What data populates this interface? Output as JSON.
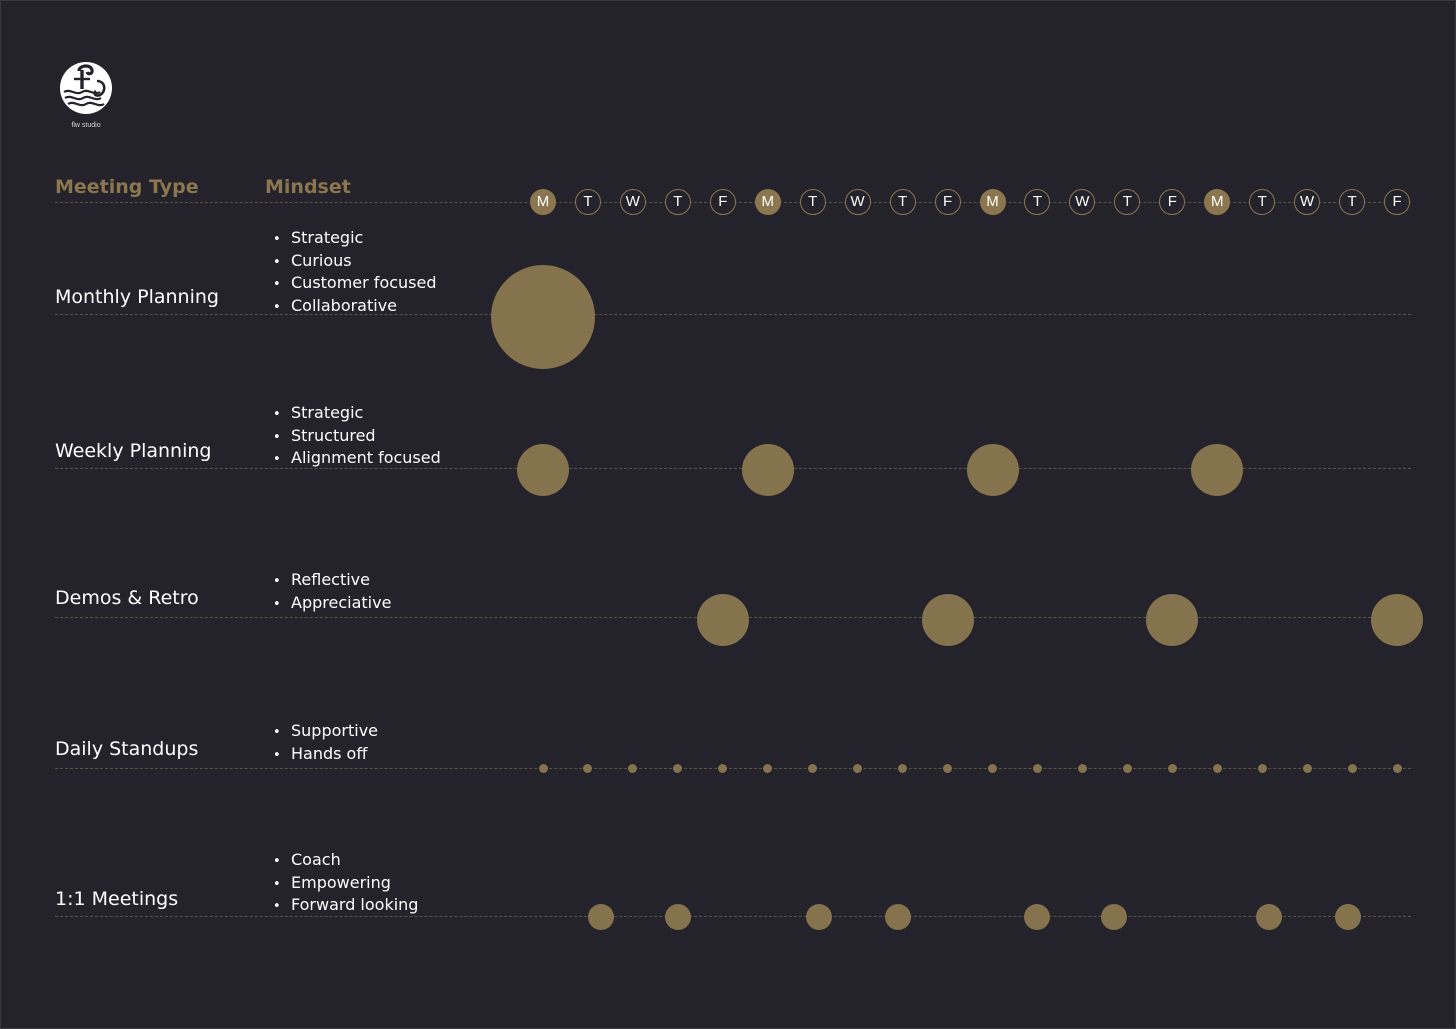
{
  "brand": {
    "name": "flw studio",
    "accent": "#8b7650",
    "dot_color": "#85734d",
    "background": "#24222a",
    "logo_icon": "flw-studio-logo"
  },
  "headers": {
    "meeting_type": "Meeting Type",
    "mindset": "Mindset"
  },
  "days": [
    "M",
    "T",
    "W",
    "T",
    "F",
    "M",
    "T",
    "W",
    "T",
    "F",
    "M",
    "T",
    "W",
    "T",
    "F",
    "M",
    "T",
    "W",
    "T",
    "F"
  ],
  "rows": [
    {
      "id": "monthly",
      "title": "Monthly Planning",
      "mindset": [
        "Strategic",
        "Curious",
        "Customer focused",
        "Collaborative"
      ],
      "meetings": [
        {
          "day": 0,
          "size": "large"
        }
      ]
    },
    {
      "id": "weekly",
      "title": "Weekly Planning",
      "mindset": [
        "Strategic",
        "Structured",
        "Alignment focused"
      ],
      "meetings": [
        {
          "day": 0,
          "size": "medium"
        },
        {
          "day": 5,
          "size": "medium"
        },
        {
          "day": 10,
          "size": "medium"
        },
        {
          "day": 15,
          "size": "medium"
        }
      ]
    },
    {
      "id": "demos",
      "title": "Demos & Retro",
      "mindset": [
        "Reflective",
        "Appreciative"
      ],
      "meetings": [
        {
          "day": 4,
          "size": "medium"
        },
        {
          "day": 9,
          "size": "medium"
        },
        {
          "day": 14,
          "size": "medium"
        },
        {
          "day": 19,
          "size": "medium"
        }
      ]
    },
    {
      "id": "standups",
      "title": "Daily Standups",
      "mindset": [
        "Supportive",
        "Hands off"
      ],
      "meetings": [
        {
          "day": 0,
          "size": "tiny"
        },
        {
          "day": 1,
          "size": "tiny"
        },
        {
          "day": 2,
          "size": "tiny"
        },
        {
          "day": 3,
          "size": "tiny"
        },
        {
          "day": 4,
          "size": "tiny"
        },
        {
          "day": 5,
          "size": "tiny"
        },
        {
          "day": 6,
          "size": "tiny"
        },
        {
          "day": 7,
          "size": "tiny"
        },
        {
          "day": 8,
          "size": "tiny"
        },
        {
          "day": 9,
          "size": "tiny"
        },
        {
          "day": 10,
          "size": "tiny"
        },
        {
          "day": 11,
          "size": "tiny"
        },
        {
          "day": 12,
          "size": "tiny"
        },
        {
          "day": 13,
          "size": "tiny"
        },
        {
          "day": 14,
          "size": "tiny"
        },
        {
          "day": 15,
          "size": "tiny"
        },
        {
          "day": 16,
          "size": "tiny"
        },
        {
          "day": 17,
          "size": "tiny"
        },
        {
          "day": 18,
          "size": "tiny"
        },
        {
          "day": 19,
          "size": "tiny"
        }
      ]
    },
    {
      "id": "one-on-one",
      "title": "1:1 Meetings",
      "mindset": [
        "Coach",
        "Empowering",
        "Forward looking"
      ],
      "meetings": [
        {
          "day": 1.3,
          "size": "small"
        },
        {
          "day": 3,
          "size": "small"
        },
        {
          "day": 6.15,
          "size": "small"
        },
        {
          "day": 7.9,
          "size": "small"
        },
        {
          "day": 11,
          "size": "small"
        },
        {
          "day": 12.7,
          "size": "small"
        },
        {
          "day": 16.15,
          "size": "small"
        },
        {
          "day": 17.9,
          "size": "small"
        }
      ]
    }
  ]
}
